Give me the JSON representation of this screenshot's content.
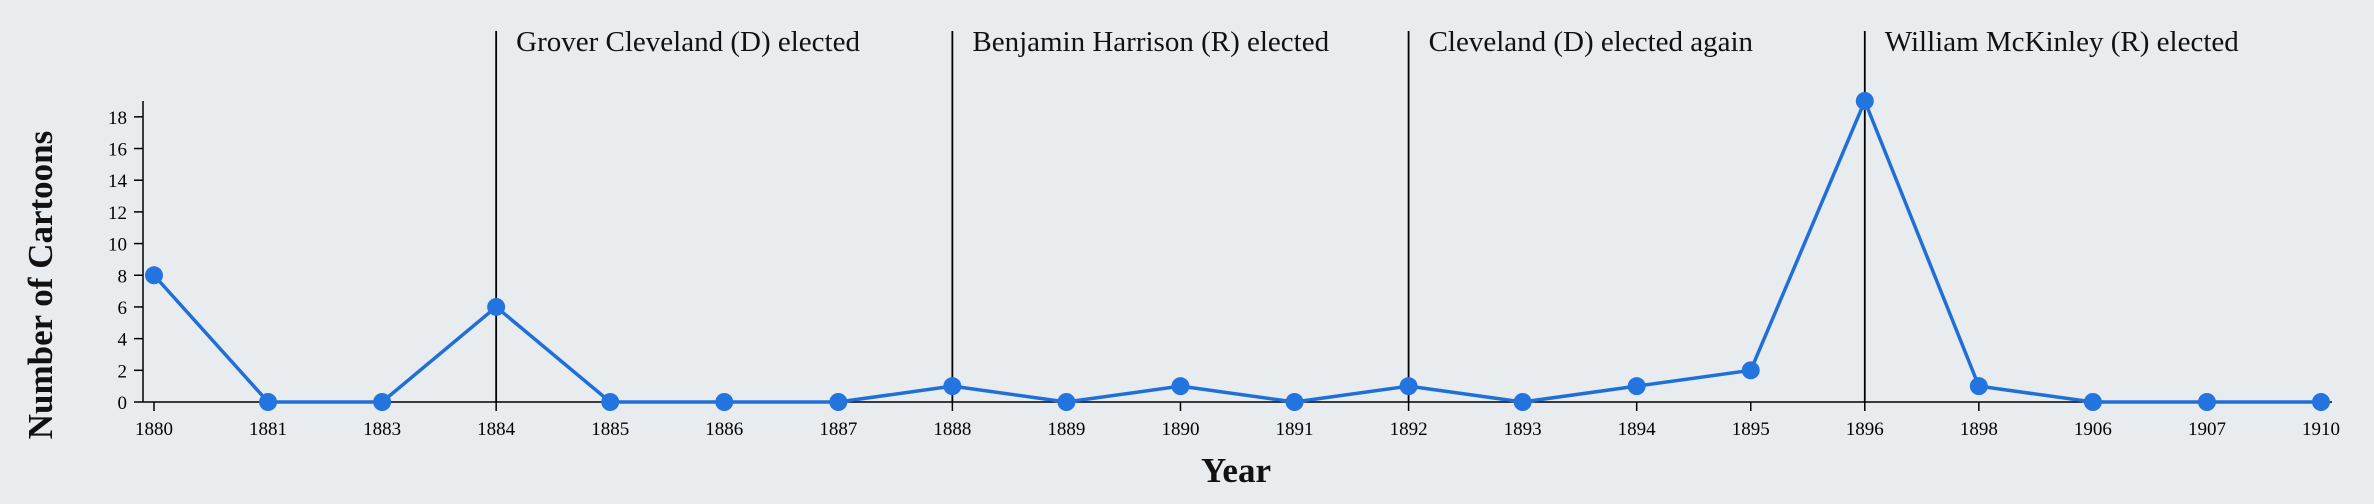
{
  "chart_data": {
    "type": "line",
    "xlabel": "Year",
    "ylabel": "Number of Cartoons",
    "ylim": [
      0,
      19
    ],
    "y_ticks": [
      0,
      2,
      4,
      6,
      8,
      10,
      12,
      14,
      16,
      18
    ],
    "categories": [
      "1880",
      "1881",
      "1883",
      "1884",
      "1885",
      "1886",
      "1887",
      "1888",
      "1889",
      "1890",
      "1891",
      "1892",
      "1893",
      "1894",
      "1895",
      "1896",
      "1898",
      "1906",
      "1907",
      "1910"
    ],
    "series": [
      {
        "values": [
          8,
          0,
          0,
          6,
          0,
          0,
          0,
          1,
          0,
          1,
          0,
          1,
          0,
          1,
          2,
          19,
          1,
          0,
          0,
          0
        ]
      }
    ],
    "annotations": [
      {
        "year": "1884",
        "label": "Grover Cleveland (D) elected"
      },
      {
        "year": "1888",
        "label": "Benjamin Harrison (R) elected"
      },
      {
        "year": "1892",
        "label": "Cleveland (D) elected again"
      },
      {
        "year": "1896",
        "label": "William McKinley (R) elected"
      }
    ],
    "grid": false,
    "colors": {
      "line": "#1f6fd9",
      "point": "#2474e0",
      "background": "#e9ecef",
      "annotation": "#000000"
    }
  }
}
